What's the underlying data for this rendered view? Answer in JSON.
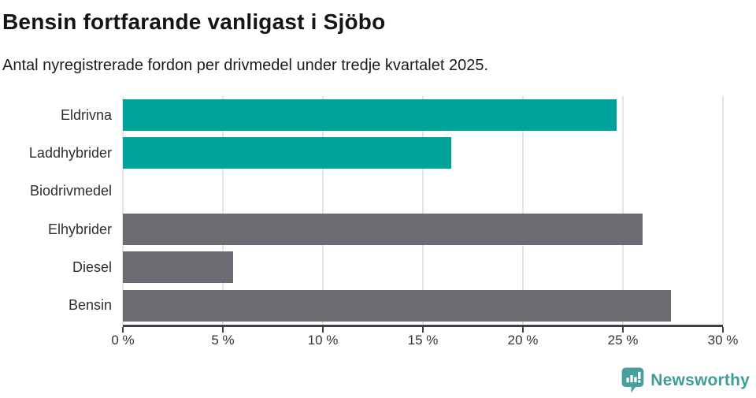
{
  "header": {
    "title": "Bensin fortfarande vanligast i Sjöbo",
    "subtitle": "Antal nyregistrerade fordon per drivmedel under tredje kvartalet 2025."
  },
  "chart_data": {
    "type": "bar",
    "orientation": "horizontal",
    "title": "Bensin fortfarande vanligast i Sjöbo",
    "subtitle": "Antal nyregistrerade fordon per drivmedel under tredje kvartalet 2025.",
    "categories": [
      "Eldrivna",
      "Laddhybrider",
      "Biodrivmedel",
      "Elhybrider",
      "Diesel",
      "Bensin"
    ],
    "values": [
      24.7,
      16.4,
      0,
      26.0,
      5.5,
      27.4
    ],
    "unit": "%",
    "bar_colors": [
      "#00a39a",
      "#00a39a",
      "#00a39a",
      "#6c6b72",
      "#6c6b72",
      "#6c6b72"
    ],
    "xlabel": "",
    "ylabel": "",
    "xlim": [
      0,
      30
    ],
    "xticks": [
      0,
      5,
      10,
      15,
      20,
      25,
      30
    ],
    "xtick_labels": [
      "0 %",
      "5 %",
      "10 %",
      "15 %",
      "20 %",
      "25 %",
      "30 %"
    ],
    "grid": "vertical",
    "legend": "none"
  },
  "footer": {
    "brand": "Newsworthy"
  },
  "colors": {
    "teal": "#00a39a",
    "gray": "#6c6b72",
    "gridline": "#e4e4e4",
    "axis": "#414046",
    "logo": "#47a09a"
  },
  "icons": {
    "logo": "newsworthy-speech-bubble-bar-chart-icon"
  }
}
